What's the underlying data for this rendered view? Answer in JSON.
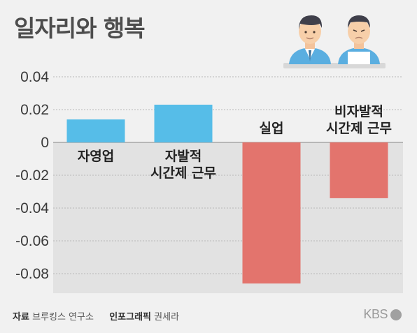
{
  "title": "일자리와 행복",
  "chart_data": {
    "type": "bar",
    "categories": [
      [
        "자영업"
      ],
      [
        "자발적",
        "시간제 근무"
      ],
      [
        "실업"
      ],
      [
        "비자발적",
        "시간제 근무"
      ]
    ],
    "values": [
      0.014,
      0.023,
      -0.086,
      -0.034
    ],
    "yticks": [
      "0.04",
      "0.02",
      "0",
      "-0.02",
      "-0.04",
      "-0.06",
      "-0.08"
    ],
    "ylim": [
      -0.09,
      0.04
    ],
    "colors": {
      "positive": "#56bde8",
      "negative": "#e3746d",
      "negative_area": "#e2e2e2"
    }
  },
  "footer": {
    "source_label": "자료",
    "source": "브루킹스 연구소",
    "graphic_label": "인포그래픽",
    "graphic": "권세라"
  },
  "brand": "KBS",
  "illustration": "two-men-icon"
}
